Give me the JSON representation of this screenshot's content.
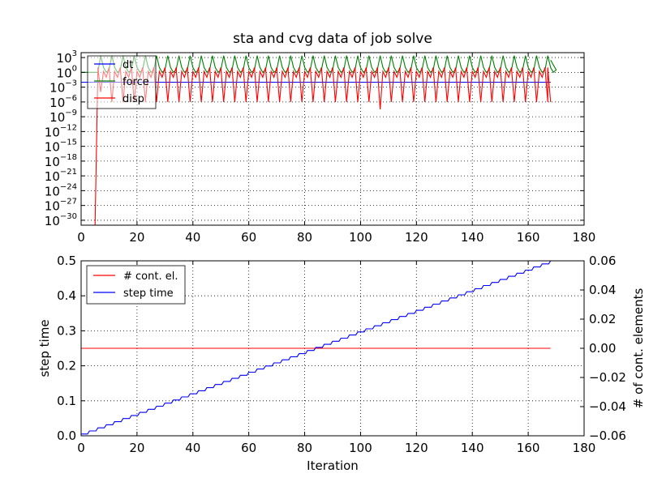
{
  "figure": {
    "title": "sta and cvg data of job solve",
    "background": "#ffffff"
  },
  "chart_data": [
    {
      "type": "line",
      "title": "sta and cvg data of job solve",
      "yscale": "log",
      "xlim": [
        0,
        180
      ],
      "xticks": [
        0,
        20,
        40,
        60,
        80,
        100,
        120,
        140,
        160,
        180
      ],
      "ylim_exp": [
        -31,
        4
      ],
      "yticks_exp": [
        3,
        0,
        -3,
        -6,
        -9,
        -12,
        -15,
        -18,
        -21,
        -24,
        -27,
        -30
      ],
      "ytick_base": "10",
      "grid": true,
      "legend": {
        "position": "top-left",
        "entries": [
          "dt",
          "force",
          "disp"
        ]
      },
      "series": [
        {
          "name": "dt",
          "color": "#0000ff",
          "pattern": "constant",
          "x_range": [
            0,
            168
          ],
          "value_exp": -2
        },
        {
          "name": "force",
          "color": "#008000",
          "pattern": "periodic spikes",
          "x_range": [
            0,
            168
          ],
          "start_exp": 0,
          "peak_exp": 4,
          "trough_exp": 0,
          "start_x": 6,
          "period": 4
        },
        {
          "name": "disp",
          "color": "#ff0000",
          "pattern": "periodic oscillation",
          "x_range": [
            0,
            168
          ],
          "start_x": 5,
          "rise_exp": -31,
          "peak_exp": 1,
          "trough_exp": -6,
          "min_at_x": 108,
          "min_exp": -7.5,
          "period": 4,
          "end_exp": -6
        }
      ]
    },
    {
      "type": "line",
      "xlabel": "Iteration",
      "ylabel": "step time",
      "ylabel_right": "# of cont. elements",
      "xlim": [
        0,
        180
      ],
      "xticks": [
        0,
        20,
        40,
        60,
        80,
        100,
        120,
        140,
        160,
        180
      ],
      "ylim": [
        0.0,
        0.5
      ],
      "yticks": [
        0.0,
        0.1,
        0.2,
        0.3,
        0.4,
        0.5
      ],
      "ylim_right": [
        -0.06,
        0.06
      ],
      "yticks_right": [
        -0.06,
        -0.04,
        -0.02,
        0.0,
        0.02,
        0.04,
        0.06
      ],
      "grid": true,
      "legend": {
        "position": "top-left",
        "entries": [
          "# cont. el.",
          "step time"
        ]
      },
      "series": [
        {
          "name": "# cont. el.",
          "color": "#ff0000",
          "axis": "right",
          "x_range": [
            0,
            168
          ],
          "value": 0.0
        },
        {
          "name": "step time",
          "color": "#0000ff",
          "axis": "left",
          "pattern": "staircase",
          "x_range": [
            0,
            168
          ],
          "start": 0.005,
          "end": 0.5,
          "step_every": 3
        }
      ]
    }
  ]
}
